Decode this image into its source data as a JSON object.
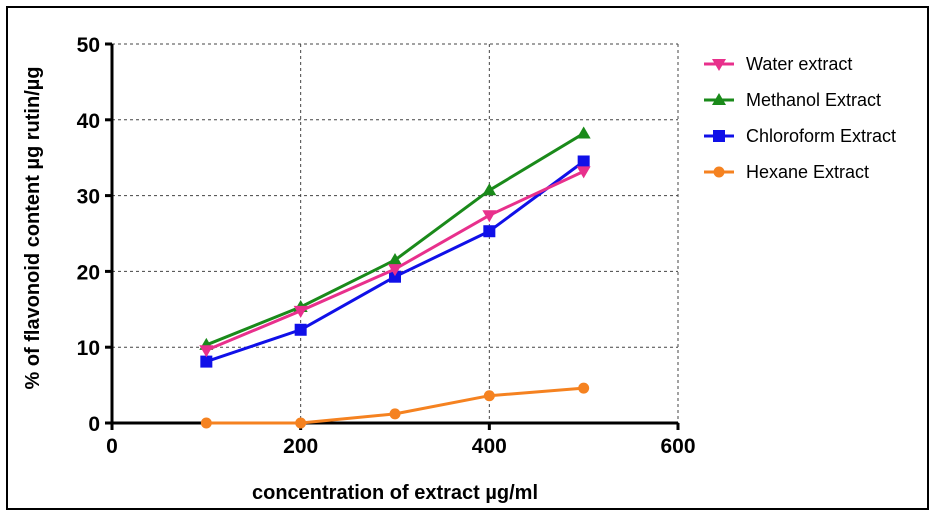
{
  "chart_data": {
    "type": "line",
    "title": "",
    "xlabel": "concentration of extract µg/ml",
    "ylabel": "% of flavonoid content µg rutin/µg",
    "xlim": [
      0,
      600
    ],
    "ylim": [
      0,
      50
    ],
    "xticks": [
      0,
      200,
      400,
      600
    ],
    "yticks": [
      0,
      10,
      20,
      30,
      40,
      50
    ],
    "grid": true,
    "legend_position": "right",
    "x": [
      100,
      200,
      300,
      400,
      500
    ],
    "series": [
      {
        "name": "Water extract",
        "color": "#e8308c",
        "marker": "triangle-down",
        "values": [
          9.6,
          14.8,
          20.3,
          27.4,
          33.2
        ]
      },
      {
        "name": "Methanol Extract",
        "color": "#1a8a1a",
        "marker": "triangle-up",
        "values": [
          10.3,
          15.3,
          21.5,
          30.7,
          38.2
        ]
      },
      {
        "name": "Chloroform Extract",
        "color": "#1010e8",
        "marker": "square",
        "values": [
          8.1,
          12.3,
          19.3,
          25.3,
          34.5
        ]
      },
      {
        "name": "Hexane Extract",
        "color": "#f58220",
        "marker": "circle",
        "values": [
          0.0,
          0.0,
          1.2,
          3.6,
          4.6
        ]
      }
    ]
  }
}
